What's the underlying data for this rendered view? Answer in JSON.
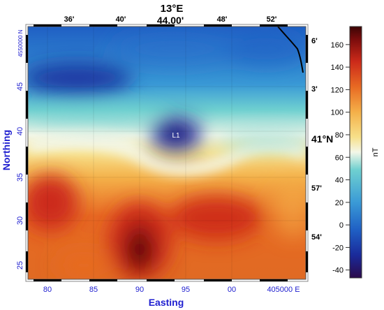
{
  "top_lon_major": "13°E",
  "top_lon_major2": "44.00'",
  "top_lon_ticks": [
    "36'",
    "40'",
    "48'",
    "52'"
  ],
  "right_lat_ticks": [
    "6'",
    "3'",
    "57'",
    "54'"
  ],
  "right_lat_major": "41°N",
  "y_axis_title": "Northing",
  "x_axis_title": "Easting",
  "y_ticks": [
    "45",
    "40",
    "35",
    "30",
    "25"
  ],
  "y_top_label": "4550000 N",
  "x_ticks": [
    "80",
    "85",
    "90",
    "95",
    "00"
  ],
  "x_right_label": "405000 E",
  "anomaly_label": "L1",
  "colorbar": {
    "unit": "nT",
    "ticks": [
      "160",
      "140",
      "120",
      "100",
      "80",
      "60",
      "40",
      "20",
      "0",
      "-20",
      "-40"
    ],
    "values": [
      160,
      140,
      120,
      100,
      80,
      60,
      40,
      20,
      0,
      -20,
      -40
    ],
    "range": [
      -47,
      176
    ],
    "stops": [
      "#2b0a4a",
      "#1a2a9a",
      "#1f5fc4",
      "#3a9ad6",
      "#6fd0d0",
      "#f4f7e8",
      "#f7e08a",
      "#f4b049",
      "#e86a23",
      "#cc2a1a",
      "#7a0c0c",
      "#3b0505"
    ]
  }
}
